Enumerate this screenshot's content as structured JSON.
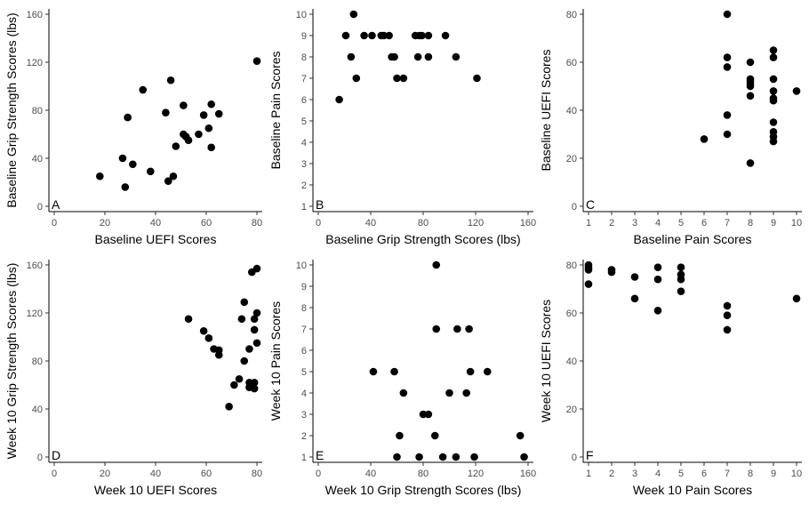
{
  "colors": {
    "point": "#000000",
    "axis": "#000000",
    "tick_text": "#4d4d4d"
  },
  "chart_data": [
    {
      "type": "scatter",
      "panel": "A",
      "xlabel": "Baseline UEFI Scores",
      "ylabel": "Baseline Grip Strength Scores (lbs)",
      "xlim": [
        0,
        80
      ],
      "ylim": [
        0,
        160
      ],
      "xticks": [
        0,
        20,
        40,
        60,
        80
      ],
      "yticks": [
        0,
        40,
        80,
        120,
        160
      ],
      "grid": false,
      "points": [
        [
          18,
          25
        ],
        [
          27,
          40
        ],
        [
          28,
          16
        ],
        [
          29,
          74
        ],
        [
          31,
          35
        ],
        [
          35,
          97
        ],
        [
          38,
          29
        ],
        [
          44,
          78
        ],
        [
          45,
          21
        ],
        [
          46,
          105
        ],
        [
          47,
          25
        ],
        [
          48,
          50
        ],
        [
          51,
          60
        ],
        [
          51,
          84
        ],
        [
          52,
          58
        ],
        [
          53,
          55
        ],
        [
          57,
          60
        ],
        [
          59,
          76
        ],
        [
          61,
          65
        ],
        [
          62,
          85
        ],
        [
          62,
          49
        ],
        [
          65,
          77
        ],
        [
          80,
          121
        ]
      ]
    },
    {
      "type": "scatter",
      "panel": "B",
      "xlabel": "Baseline Grip Strength Scores (lbs)",
      "ylabel": "Baseline Pain Scores",
      "xlim": [
        0,
        160
      ],
      "ylim": [
        1,
        10
      ],
      "xticks": [
        0,
        40,
        80,
        120,
        160
      ],
      "yticks": [
        1,
        2,
        3,
        4,
        5,
        6,
        7,
        8,
        9,
        10
      ],
      "grid": false,
      "points": [
        [
          16,
          6
        ],
        [
          21,
          9
        ],
        [
          25,
          8
        ],
        [
          27,
          10
        ],
        [
          29,
          7
        ],
        [
          35,
          9
        ],
        [
          41,
          9
        ],
        [
          48,
          9
        ],
        [
          50,
          9
        ],
        [
          54,
          9
        ],
        [
          56,
          8
        ],
        [
          58,
          8
        ],
        [
          60,
          7
        ],
        [
          65,
          7
        ],
        [
          74,
          9
        ],
        [
          76,
          8
        ],
        [
          77,
          9
        ],
        [
          79,
          9
        ],
        [
          84,
          9
        ],
        [
          84,
          8
        ],
        [
          97,
          9
        ],
        [
          105,
          8
        ],
        [
          121,
          7
        ]
      ]
    },
    {
      "type": "scatter",
      "panel": "C",
      "xlabel": "Baseline Pain Scores",
      "ylabel": "Baseline UEFI Scores",
      "xlim": [
        1,
        10
      ],
      "ylim": [
        0,
        80
      ],
      "xticks": [
        1,
        2,
        3,
        4,
        5,
        6,
        7,
        8,
        9,
        10
      ],
      "yticks": [
        0,
        20,
        40,
        60,
        80
      ],
      "grid": false,
      "points": [
        [
          6,
          28
        ],
        [
          7,
          80
        ],
        [
          7,
          62
        ],
        [
          7,
          58
        ],
        [
          7,
          38
        ],
        [
          7,
          30
        ],
        [
          8,
          60
        ],
        [
          8,
          53
        ],
        [
          8,
          52
        ],
        [
          8,
          51
        ],
        [
          8,
          50
        ],
        [
          8,
          46
        ],
        [
          8,
          18
        ],
        [
          9,
          65
        ],
        [
          9,
          62
        ],
        [
          9,
          53
        ],
        [
          9,
          48
        ],
        [
          9,
          45
        ],
        [
          9,
          44
        ],
        [
          9,
          35
        ],
        [
          9,
          31
        ],
        [
          9,
          29
        ],
        [
          9,
          27
        ],
        [
          10,
          48
        ]
      ]
    },
    {
      "type": "scatter",
      "panel": "D",
      "xlabel": "Week 10 UEFI Scores",
      "ylabel": "Week 10 Grip Strength Scores (lbs)",
      "xlim": [
        0,
        80
      ],
      "ylim": [
        0,
        160
      ],
      "xticks": [
        0,
        20,
        40,
        60,
        80
      ],
      "yticks": [
        0,
        40,
        80,
        120,
        160
      ],
      "grid": false,
      "points": [
        [
          53,
          115
        ],
        [
          59,
          105
        ],
        [
          61,
          99
        ],
        [
          63,
          90
        ],
        [
          65,
          85
        ],
        [
          65,
          89
        ],
        [
          69,
          42
        ],
        [
          71,
          60
        ],
        [
          73,
          65
        ],
        [
          74,
          115
        ],
        [
          75,
          129
        ],
        [
          75,
          80
        ],
        [
          77,
          62
        ],
        [
          77,
          90
        ],
        [
          77,
          58
        ],
        [
          78,
          154
        ],
        [
          79,
          62
        ],
        [
          79,
          57
        ],
        [
          79,
          115
        ],
        [
          79,
          106
        ],
        [
          80,
          157
        ],
        [
          80,
          120
        ],
        [
          80,
          95
        ]
      ]
    },
    {
      "type": "scatter",
      "panel": "E",
      "xlabel": "Week 10 Grip Strength Scores (lbs)",
      "ylabel": "Week 10 Pain Scores",
      "xlim": [
        0,
        160
      ],
      "ylim": [
        1,
        10
      ],
      "xticks": [
        0,
        40,
        80,
        120,
        160
      ],
      "yticks": [
        1,
        2,
        3,
        4,
        5,
        6,
        7,
        8,
        9,
        10
      ],
      "grid": false,
      "points": [
        [
          42,
          5
        ],
        [
          58,
          5
        ],
        [
          60,
          1
        ],
        [
          62,
          2
        ],
        [
          65,
          4
        ],
        [
          77,
          1
        ],
        [
          80,
          3
        ],
        [
          84,
          3
        ],
        [
          89,
          2
        ],
        [
          90,
          7
        ],
        [
          90,
          10
        ],
        [
          95,
          1
        ],
        [
          100,
          4
        ],
        [
          105,
          1
        ],
        [
          106,
          7
        ],
        [
          113,
          4
        ],
        [
          115,
          7
        ],
        [
          116,
          5
        ],
        [
          119,
          1
        ],
        [
          129,
          5
        ],
        [
          154,
          2
        ],
        [
          157,
          1
        ]
      ]
    },
    {
      "type": "scatter",
      "panel": "F",
      "xlabel": "Week 10 Pain Scores",
      "ylabel": "Week 10 UEFI Scores",
      "xlim": [
        1,
        10
      ],
      "ylim": [
        0,
        80
      ],
      "xticks": [
        1,
        2,
        3,
        4,
        5,
        6,
        7,
        8,
        9,
        10
      ],
      "yticks": [
        0,
        20,
        40,
        60,
        80
      ],
      "grid": false,
      "points": [
        [
          1,
          80
        ],
        [
          1,
          79
        ],
        [
          1,
          78
        ],
        [
          1,
          72
        ],
        [
          2,
          78
        ],
        [
          2,
          77
        ],
        [
          3,
          75
        ],
        [
          3,
          66
        ],
        [
          4,
          79
        ],
        [
          4,
          74
        ],
        [
          4,
          61
        ],
        [
          5,
          79
        ],
        [
          5,
          76
        ],
        [
          5,
          74
        ],
        [
          5,
          69
        ],
        [
          7,
          63
        ],
        [
          7,
          59
        ],
        [
          7,
          53
        ],
        [
          10,
          66
        ]
      ]
    }
  ]
}
